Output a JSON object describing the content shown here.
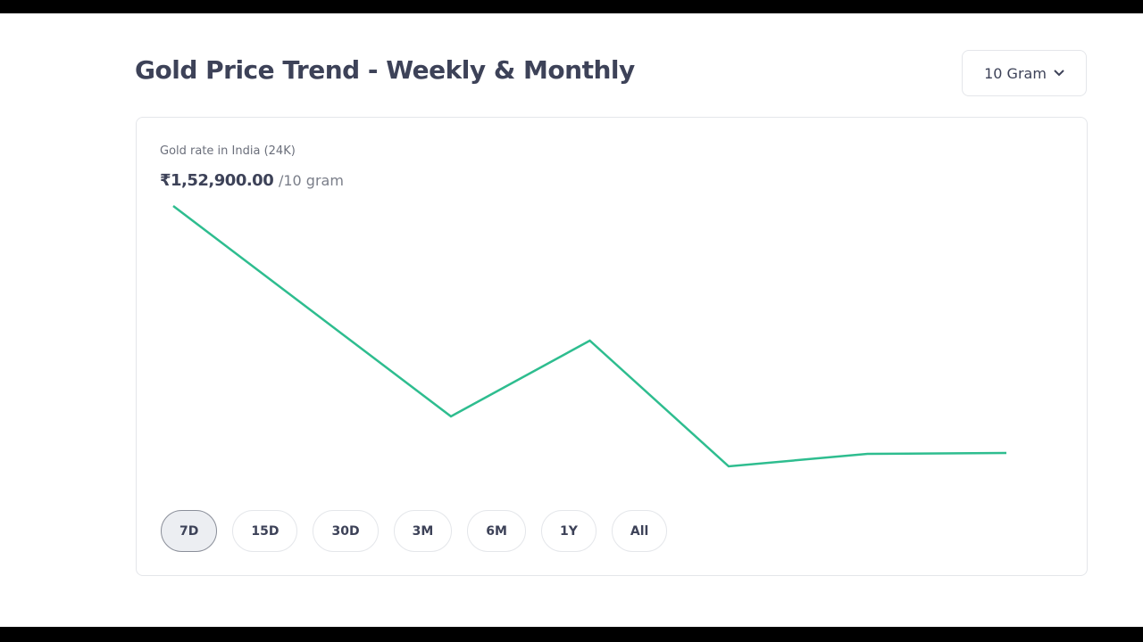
{
  "header": {
    "title": "Gold Price Trend - Weekly & Monthly",
    "unit_selector": "10 Gram"
  },
  "chart_data": {
    "type": "line",
    "subtitle": "Gold rate in India (24K)",
    "price": "₹1,52,900.00",
    "price_unit": "/10 gram",
    "values": [
      155670,
      154490,
      153310,
      154160,
      152750,
      152890,
      152900
    ],
    "color": "#2ebd8f"
  },
  "range_buttons": [
    "7D",
    "15D",
    "30D",
    "3M",
    "6M",
    "1Y",
    "All"
  ],
  "selected_range": "7D"
}
